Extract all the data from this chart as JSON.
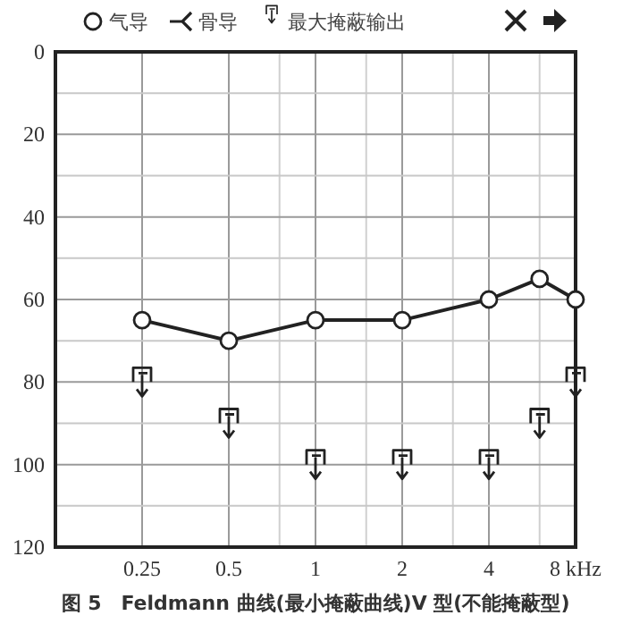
{
  "chart_data": {
    "type": "line",
    "title": "图 5　Feldmann 曲线(最小掩蔽曲线)V 型(不能掩蔽型)",
    "log": "x",
    "xlim": [
      0.125,
      8
    ],
    "xticks": [
      0.25,
      0.5,
      {
        "value": 0.75,
        "label": null
      },
      1,
      {
        "value": 1.5,
        "label": null
      },
      2,
      {
        "value": 3,
        "label": null
      },
      4,
      {
        "value": 6,
        "label": null
      },
      {
        "value": 8,
        "label": "8 kHz"
      }
    ],
    "ylim": [
      120,
      0
    ],
    "yticks": [
      0,
      {
        "value": 10,
        "label": null
      },
      20,
      {
        "value": 30,
        "label": null
      },
      40,
      {
        "value": 50,
        "label": null
      },
      60,
      {
        "value": 70,
        "label": null
      },
      80,
      {
        "value": 90,
        "label": null
      },
      100,
      {
        "value": 110,
        "label": null
      },
      120
    ],
    "grid": true,
    "legend": "top",
    "series": [
      {
        "name": "气导",
        "marker": "circle",
        "color": "#222222",
        "x": [
          0.25,
          0.5,
          1,
          2,
          4,
          6,
          8
        ],
        "values": [
          65,
          70,
          65,
          65,
          60,
          55,
          60
        ]
      },
      {
        "name": "骨导",
        "type": "scatter",
        "color": "#222222"
      },
      {
        "name": "最大掩蔽输出",
        "type": "scatter",
        "color": "#222222",
        "x": [
          0.25,
          0.5,
          1,
          2,
          4,
          6,
          8
        ],
        "values": [
          80,
          90,
          100,
          100,
          100,
          90,
          80
        ]
      }
    ]
  }
}
